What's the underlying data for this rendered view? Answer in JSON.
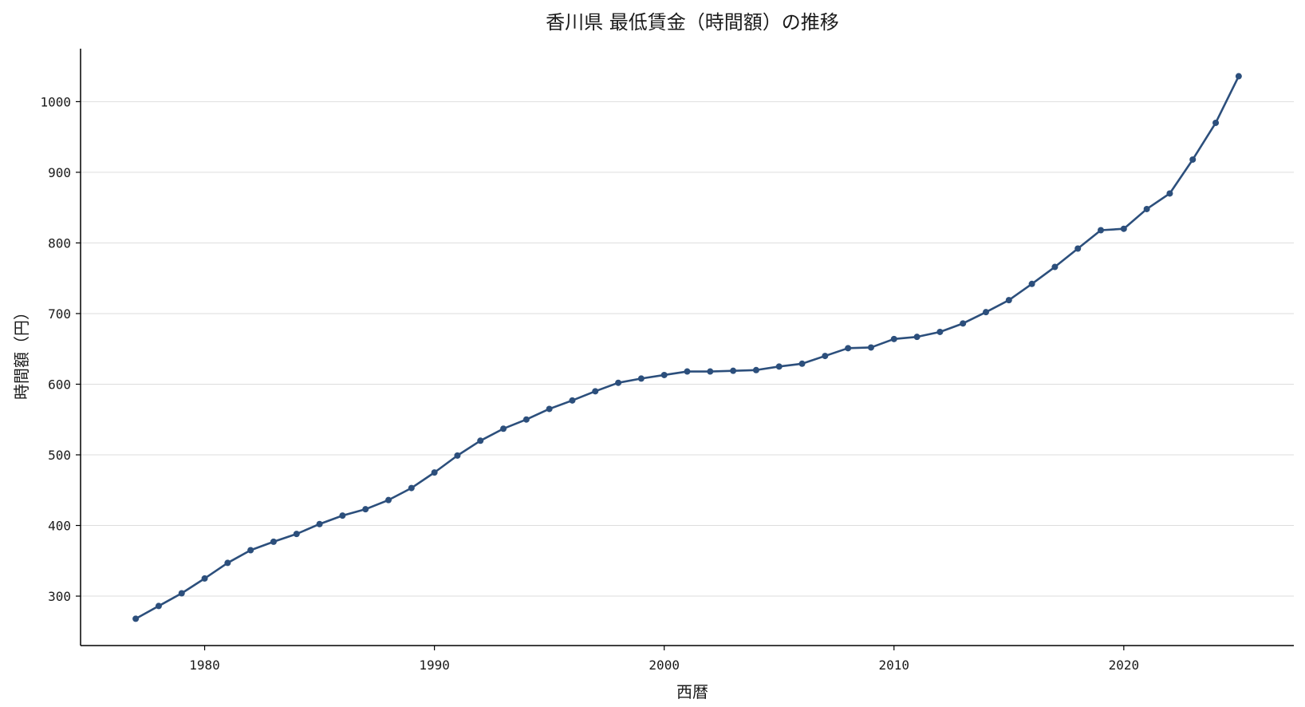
{
  "chart_data": {
    "type": "line",
    "title": "香川県 最低賃金（時間額）の推移",
    "xlabel": "西暦",
    "ylabel": "時間額（円）",
    "xlim": [
      1974.6,
      2027.4
    ],
    "ylim": [
      230,
      1075
    ],
    "x_ticks": [
      1980,
      1990,
      2000,
      2010,
      2020
    ],
    "y_ticks": [
      300,
      400,
      500,
      600,
      700,
      800,
      900,
      1000
    ],
    "grid": "y-major",
    "legend": "none",
    "color": "#2c4f7c",
    "series": [
      {
        "x": [
          1977,
          1978,
          1979,
          1980,
          1981,
          1982,
          1983,
          1984,
          1985,
          1986,
          1987,
          1988,
          1989,
          1990,
          1991,
          1992,
          1993,
          1994,
          1995,
          1996,
          1997,
          1998,
          1999,
          2000,
          2001,
          2002,
          2003,
          2004,
          2005,
          2006,
          2007,
          2008,
          2009,
          2010,
          2011,
          2012,
          2013,
          2014,
          2015,
          2016,
          2017,
          2018,
          2019,
          2020,
          2021,
          2022,
          2023,
          2024,
          2025
        ],
        "values": [
          268,
          286,
          304,
          325,
          347,
          365,
          377,
          388,
          402,
          414,
          423,
          436,
          453,
          475,
          499,
          520,
          537,
          550,
          565,
          577,
          590,
          602,
          608,
          613,
          618,
          618,
          619,
          620,
          625,
          629,
          640,
          651,
          652,
          664,
          667,
          674,
          686,
          702,
          719,
          742,
          766,
          792,
          818,
          820,
          848,
          870,
          918,
          970,
          1036
        ]
      }
    ]
  }
}
